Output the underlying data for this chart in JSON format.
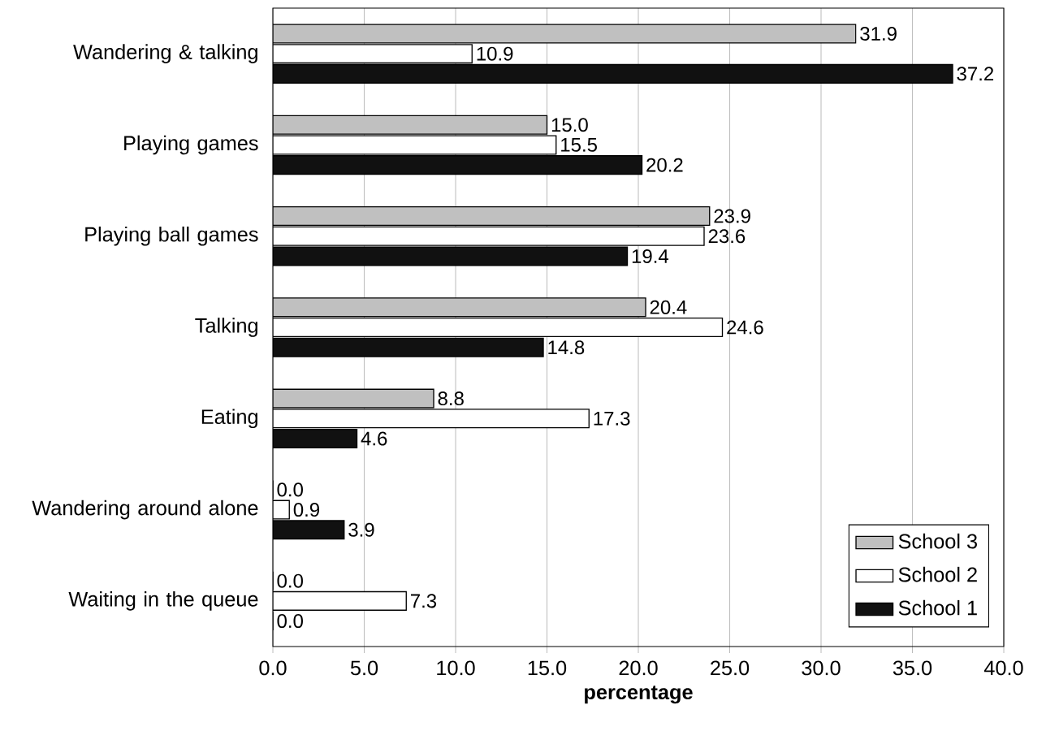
{
  "chart_data": {
    "type": "bar",
    "orientation": "horizontal",
    "xlabel": "percentage",
    "categories": [
      "Wandering & talking",
      "Playing games",
      "Playing ball games",
      "Talking",
      "Eating",
      "Wandering around alone",
      "Waiting in the queue"
    ],
    "series": [
      {
        "name": "School 3",
        "color": "#c0c0c0",
        "values": [
          31.9,
          15.0,
          23.9,
          20.4,
          8.8,
          0.0,
          0.0
        ],
        "value_labels": [
          "31.9",
          "15.0",
          "23.9",
          "20.4",
          "8.8",
          "0.0",
          "0.0"
        ]
      },
      {
        "name": "School 2",
        "color": "#ffffff",
        "values": [
          10.9,
          15.5,
          23.6,
          24.6,
          17.3,
          0.9,
          7.3
        ],
        "value_labels": [
          "10.9",
          "15.5",
          "23.6",
          "24.6",
          "17.3",
          "0.9",
          "7.3"
        ]
      },
      {
        "name": "School 1",
        "color": "#111111",
        "values": [
          37.2,
          20.2,
          19.4,
          14.8,
          4.6,
          3.9,
          0.0
        ],
        "value_labels": [
          "37.2",
          "20.2",
          "19.4",
          "14.8",
          "4.6",
          "3.9",
          "0.0"
        ]
      }
    ],
    "xlim": [
      0,
      40
    ],
    "xticks": [
      {
        "value": 0,
        "label": "0.0"
      },
      {
        "value": 5,
        "label": "5.0"
      },
      {
        "value": 10,
        "label": "10.0"
      },
      {
        "value": 15,
        "label": "15.0"
      },
      {
        "value": 20,
        "label": "20.0"
      },
      {
        "value": 25,
        "label": "25.0"
      },
      {
        "value": 30,
        "label": "30.0"
      },
      {
        "value": 35,
        "label": "35.0"
      },
      {
        "value": 40,
        "label": "40.0"
      }
    ],
    "grid": "x",
    "legend": "bottom right"
  }
}
